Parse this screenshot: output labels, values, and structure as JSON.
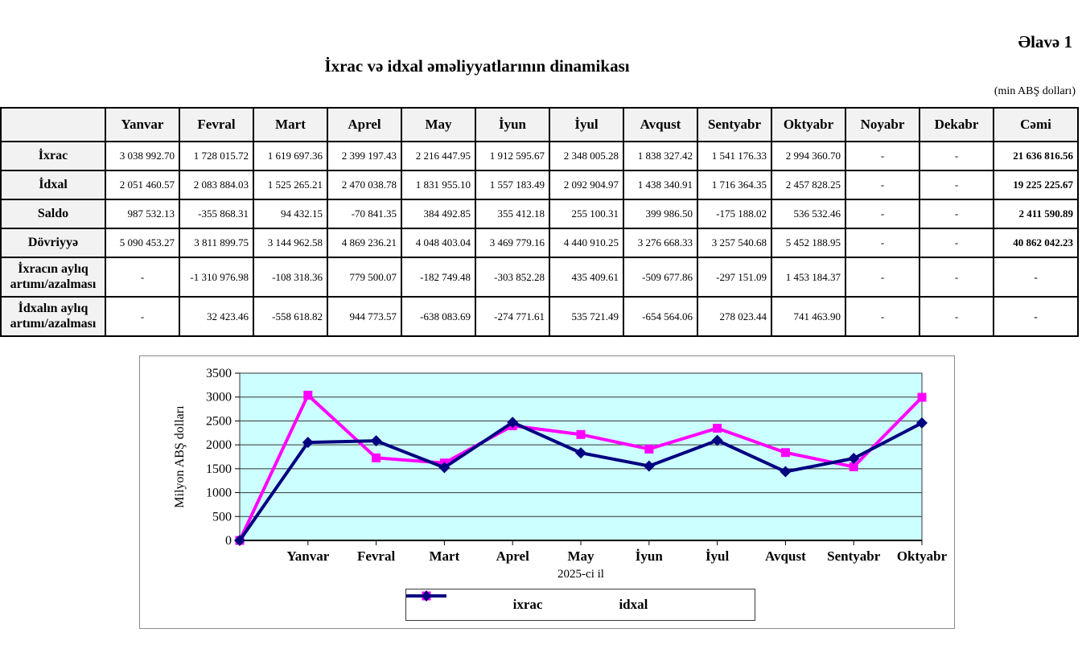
{
  "header": {
    "annex": "Əlavə 1",
    "title": "İxrac və idxal əməliyyatlarının dinamikası",
    "unit_note": "(min ABŞ dolları)"
  },
  "table": {
    "corner": "",
    "columns": [
      "Yanvar",
      "Fevral",
      "Mart",
      "Aprel",
      "May",
      "İyun",
      "İyul",
      "Avqust",
      "Sentyabr",
      "Oktyabr",
      "Noyabr",
      "Dekabr",
      "Cəmi"
    ],
    "rows": [
      {
        "label": "İxrac",
        "tall": false,
        "values": [
          "3 038 992.70",
          "1 728 015.72",
          "1 619 697.36",
          "2 399 197.43",
          "2 216 447.95",
          "1 912 595.67",
          "2 348 005.28",
          "1 838 327.42",
          "1 541 176.33",
          "2 994 360.70",
          "-",
          "-",
          "21 636 816.56"
        ]
      },
      {
        "label": "İdxal",
        "tall": false,
        "values": [
          "2 051 460.57",
          "2 083 884.03",
          "1 525 265.21",
          "2 470 038.78",
          "1 831 955.10",
          "1 557 183.49",
          "2 092 904.97",
          "1 438 340.91",
          "1 716 364.35",
          "2 457 828.25",
          "-",
          "-",
          "19 225 225.67"
        ]
      },
      {
        "label": "Saldo",
        "tall": false,
        "values": [
          "987 532.13",
          "-355 868.31",
          "94 432.15",
          "-70 841.35",
          "384 492.85",
          "355 412.18",
          "255 100.31",
          "399 986.50",
          "-175 188.02",
          "536 532.46",
          "-",
          "-",
          "2 411 590.89"
        ]
      },
      {
        "label": "Dövriyyə",
        "tall": false,
        "values": [
          "5 090 453.27",
          "3 811 899.75",
          "3 144 962.58",
          "4 869 236.21",
          "4 048 403.04",
          "3 469 779.16",
          "4 440 910.25",
          "3 276 668.33",
          "3 257 540.68",
          "5 452 188.95",
          "-",
          "-",
          "40 862 042.23"
        ]
      },
      {
        "label": "İxracın aylıq artımı/azalması",
        "tall": true,
        "values": [
          "-",
          "-1 310 976.98",
          "-108 318.36",
          "779 500.07",
          "-182 749.48",
          "-303 852.28",
          "435 409.61",
          "-509 677.86",
          "-297 151.09",
          "1 453 184.37",
          "-",
          "-",
          "-"
        ]
      },
      {
        "label": "İdxalın aylıq artımı/azalması",
        "tall": true,
        "values": [
          "-",
          "32 423.46",
          "-558 618.82",
          "944 773.57",
          "-638 083.69",
          "-274 771.61",
          "535 721.49",
          "-654 564.06",
          "278 023.44",
          "741 463.90",
          "-",
          "-",
          "-"
        ]
      }
    ]
  },
  "chart_data": {
    "type": "line",
    "title": "",
    "xlabel": "2025-ci il",
    "ylabel": "Milyon ABŞ dolları",
    "ylim": [
      0,
      3500
    ],
    "ytick_step": 500,
    "grid": true,
    "legend_position": "bottom",
    "plot_bg": "#CCFFFF",
    "categories": [
      "",
      "Yanvar",
      "Fevral",
      "Mart",
      "Aprel",
      "May",
      "İyun",
      "İyul",
      "Avqust",
      "Sentyabr",
      "Oktyabr"
    ],
    "series": [
      {
        "name": "ixrac",
        "color": "#FF00FF",
        "marker": "square",
        "values": [
          0,
          3038.99,
          1728.02,
          1619.7,
          2399.2,
          2216.45,
          1912.6,
          2348.01,
          1838.33,
          1541.18,
          2994.36
        ]
      },
      {
        "name": "idxal",
        "color": "#000080",
        "marker": "diamond",
        "values": [
          0,
          2051.46,
          2083.88,
          1525.27,
          2470.04,
          1831.96,
          1557.18,
          2092.9,
          1438.34,
          1716.36,
          2457.83
        ]
      }
    ]
  }
}
